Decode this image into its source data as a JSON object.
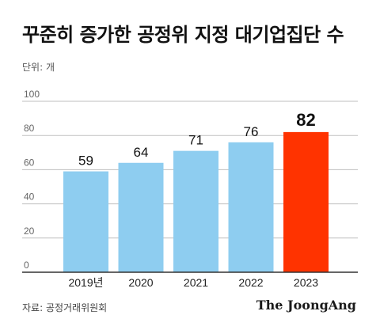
{
  "title": "꾸준히 증가한 공정위 지정 대기업집단 수",
  "unit_label": "단위: 개",
  "source": "자료: 공정거래위원회",
  "logo_text": "The JoongAng",
  "colors": {
    "bar": "#8ECDF0",
    "highlight": "#FF3300",
    "grid": "#BFBFBF",
    "axis": "#333333"
  },
  "chart_data": {
    "type": "bar",
    "categories": [
      "2019년",
      "2020",
      "2021",
      "2022",
      "2023"
    ],
    "values": [
      59,
      64,
      71,
      76,
      82
    ],
    "ylim": [
      0,
      100
    ],
    "yticks": [
      0,
      20,
      40,
      60,
      80,
      100
    ],
    "highlight_index": 4,
    "grid": true
  }
}
